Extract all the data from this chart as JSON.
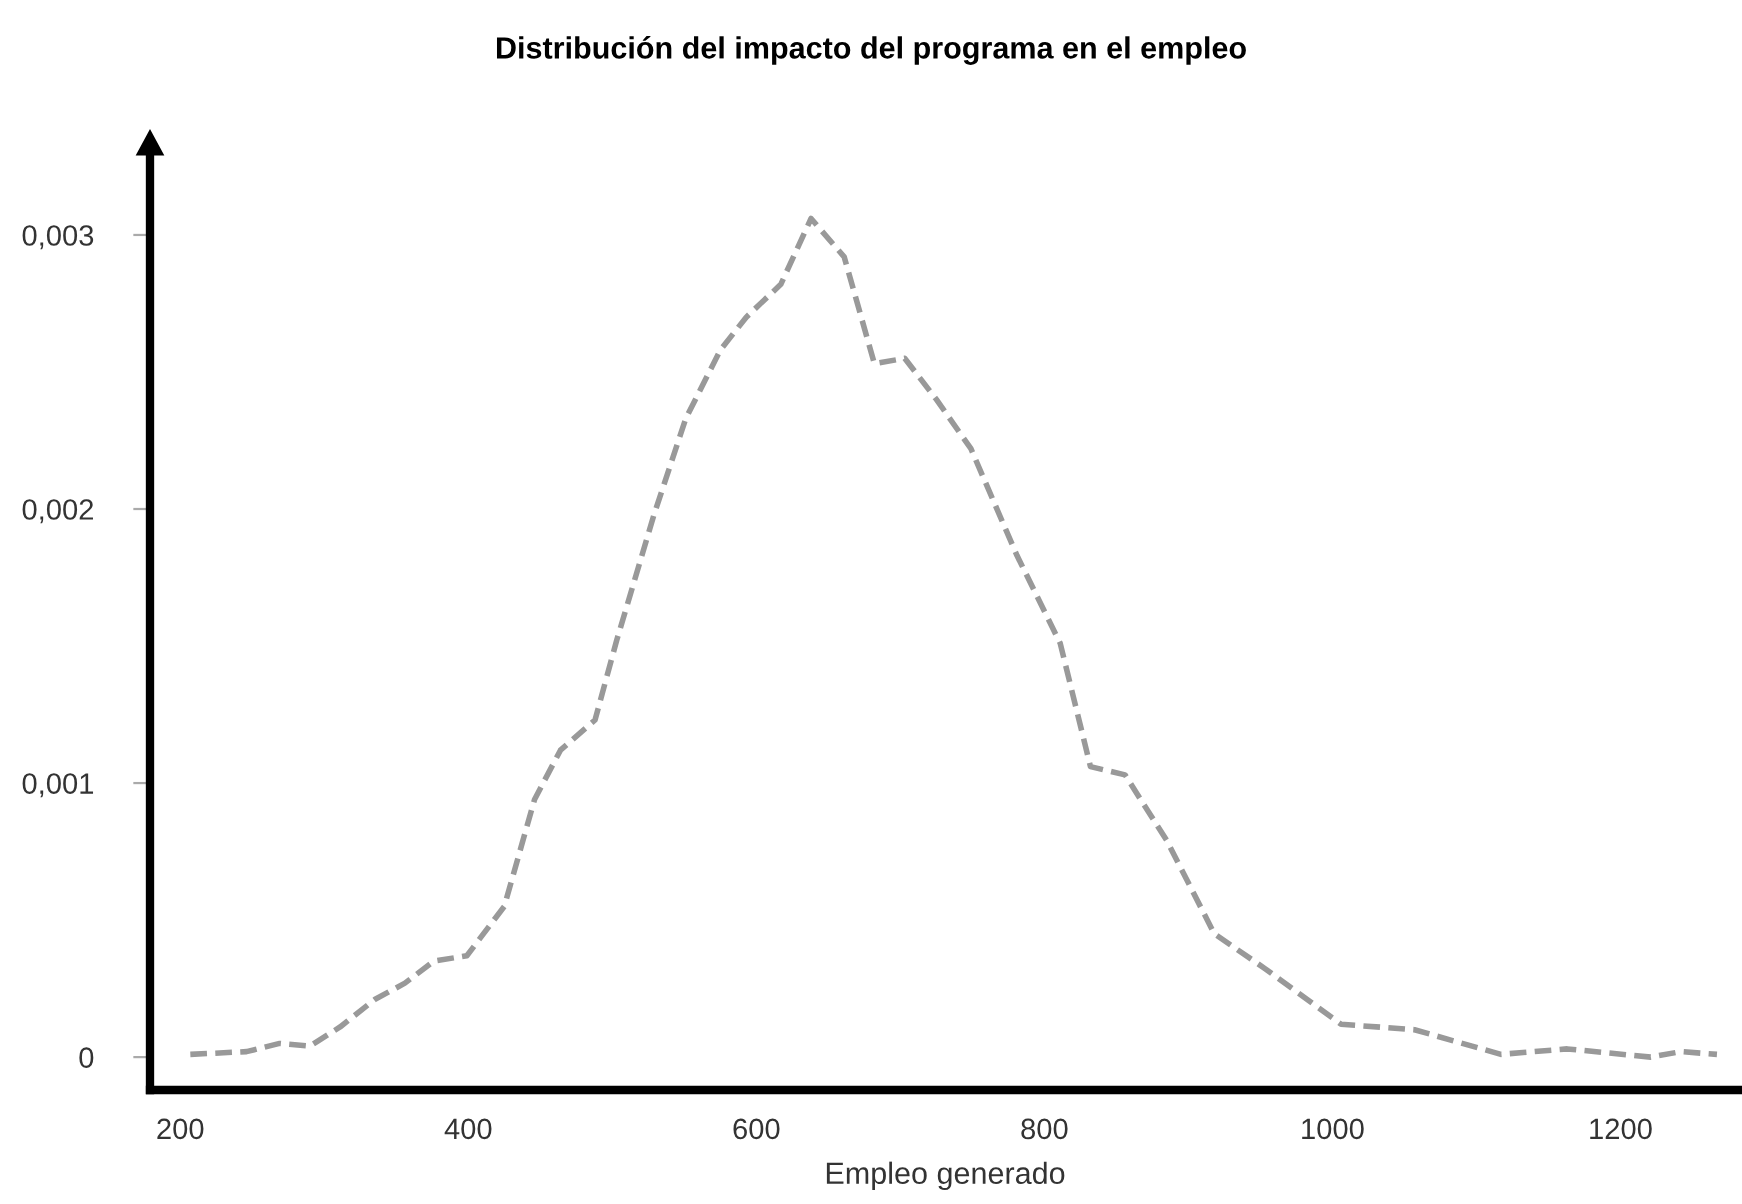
{
  "chart_data": {
    "type": "line",
    "title": "Distribución del impacto del programa en el empleo",
    "xlabel": "Empleo generado",
    "line_style": "dashed",
    "marker": "none",
    "grid": false,
    "legend": false,
    "xlim": [
      179,
      1283
    ],
    "ylim": [
      -0.00012,
      0.00331
    ],
    "xticks": [
      200,
      400,
      600,
      800,
      1000,
      1200
    ],
    "yticks": [
      {
        "value": 0,
        "label": "0"
      },
      {
        "value": 0.001,
        "label": "0,001"
      },
      {
        "value": 0.002,
        "label": "0,002"
      },
      {
        "value": 0.003,
        "label": "0,003"
      }
    ],
    "series": [
      {
        "color": "#999999",
        "x": [
          207,
          246,
          269,
          290,
          311,
          335,
          356,
          376,
          399,
          425,
          446,
          464,
          488,
          503,
          529,
          551,
          575,
          593,
          617,
          638,
          661,
          682,
          703,
          725,
          749,
          781,
          811,
          832,
          856,
          885,
          918,
          954,
          1006,
          1057,
          1117,
          1163,
          1221,
          1242,
          1267
        ],
        "values": [
          1e-05,
          2e-05,
          5e-05,
          4e-05,
          0.00011,
          0.00021,
          0.00027,
          0.00035,
          0.00037,
          0.00055,
          0.00094,
          0.00112,
          0.00123,
          0.00152,
          0.00198,
          0.00233,
          0.00258,
          0.0027,
          0.00282,
          0.00306,
          0.00292,
          0.00253,
          0.00255,
          0.0024,
          0.00222,
          0.00183,
          0.00151,
          0.00106,
          0.00103,
          0.00079,
          0.00045,
          0.00032,
          0.00012,
          0.0001,
          1e-05,
          3e-05,
          0.0,
          2e-05,
          1e-05
        ]
      }
    ]
  }
}
